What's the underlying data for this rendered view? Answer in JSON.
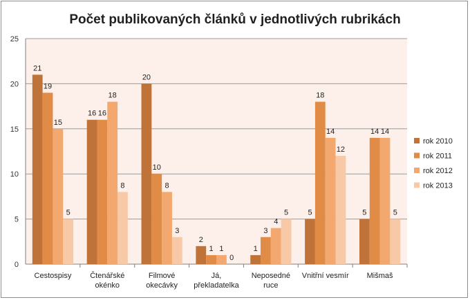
{
  "chart_data": {
    "type": "bar",
    "title": "Počet publikovaných článků v jednotlivých rubrikách",
    "xlabel": "",
    "ylabel": "",
    "ylim": [
      0,
      25
    ],
    "yticks": [
      0,
      5,
      10,
      15,
      20,
      25
    ],
    "grid": true,
    "legend_position": "right",
    "categories": [
      [
        "Cestospisy"
      ],
      [
        "Čtenářské",
        "okénko"
      ],
      [
        "Filmové",
        "okecávky"
      ],
      [
        "Já,",
        "překladatelka"
      ],
      [
        "Neposedné",
        "ruce"
      ],
      [
        "Vnitřní vesmír"
      ],
      [
        "Mišmaš"
      ]
    ],
    "series": [
      {
        "name": "rok 2010",
        "color": "#c07338",
        "values": [
          21,
          16,
          20,
          2,
          1,
          5,
          5
        ]
      },
      {
        "name": "rok 2011",
        "color": "#e08b46",
        "values": [
          19,
          16,
          10,
          1,
          3,
          18,
          14
        ]
      },
      {
        "name": "rok 2012",
        "color": "#f2a86e",
        "values": [
          15,
          18,
          8,
          1,
          4,
          14,
          14
        ]
      },
      {
        "name": "rok 2013",
        "color": "#f8c9a6",
        "values": [
          5,
          8,
          3,
          0,
          5,
          12,
          5
        ]
      }
    ],
    "plot_background": "#fdf0ea",
    "gridline_color": "#9a9a9a"
  }
}
